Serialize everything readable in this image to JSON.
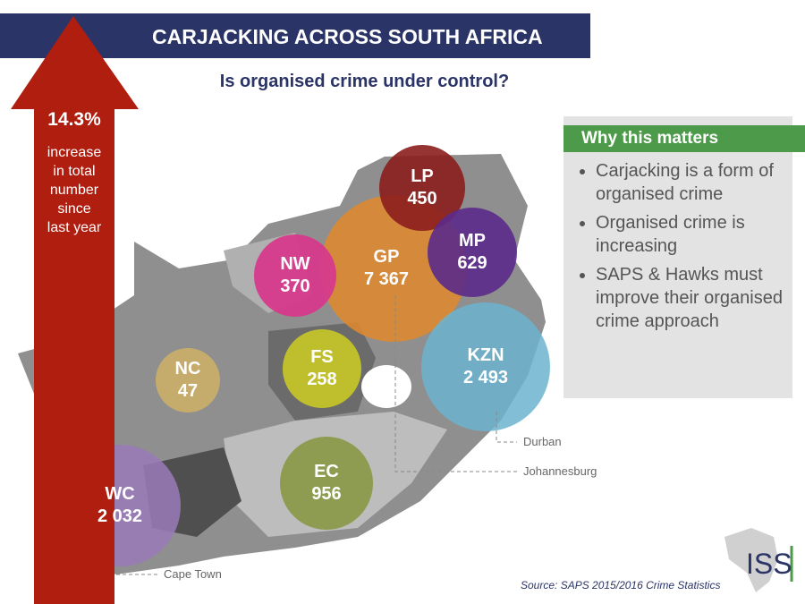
{
  "header": {
    "title": "CARJACKING ACROSS SOUTH AFRICA",
    "subtitle": "Is organised crime under control?"
  },
  "arrow": {
    "value": "14.3%",
    "lines": [
      "increase",
      "in total",
      "number",
      "since",
      "last year"
    ]
  },
  "provinces": [
    {
      "code": "LP",
      "value": "450"
    },
    {
      "code": "MP",
      "value": "629"
    },
    {
      "code": "GP",
      "value": "7 367"
    },
    {
      "code": "NW",
      "value": "370"
    },
    {
      "code": "FS",
      "value": "258"
    },
    {
      "code": "NC",
      "value": "47"
    },
    {
      "code": "KZN",
      "value": "2 493"
    },
    {
      "code": "EC",
      "value": "956"
    },
    {
      "code": "WC",
      "value": "2 032"
    }
  ],
  "cities": [
    "Durban",
    "Johannesburg",
    "Cape Town"
  ],
  "panel": {
    "title": "Why this matters",
    "bullets": [
      "Carjacking is a form of organised crime",
      "Organised crime is increasing",
      "SAPS & Hawks must improve their organised crime approach"
    ]
  },
  "source": "Source: SAPS 2015/2016 Crime Statistics",
  "logo": "ISS"
}
